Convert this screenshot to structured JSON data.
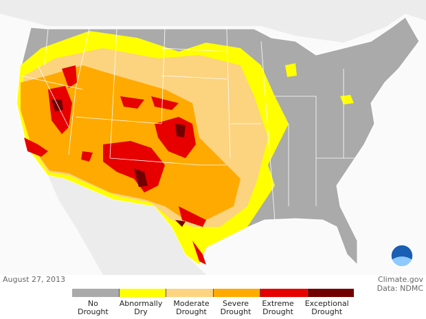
{
  "date": "August 27, 2013",
  "credit": "Climate.gov",
  "source": "Data: NDMC",
  "legend": [
    {
      "label": "No Drought",
      "color": "#aaaaaa"
    },
    {
      "label": "Abnormally Dry",
      "color": "#ffff00"
    },
    {
      "label": "Moderate Drought",
      "color": "#fcd37f"
    },
    {
      "label": "Severe Drought",
      "color": "#ffaa00"
    },
    {
      "label": "Extreme Drought",
      "color": "#e60000"
    },
    {
      "label": "Exceptional Drought",
      "color": "#730000"
    }
  ]
}
